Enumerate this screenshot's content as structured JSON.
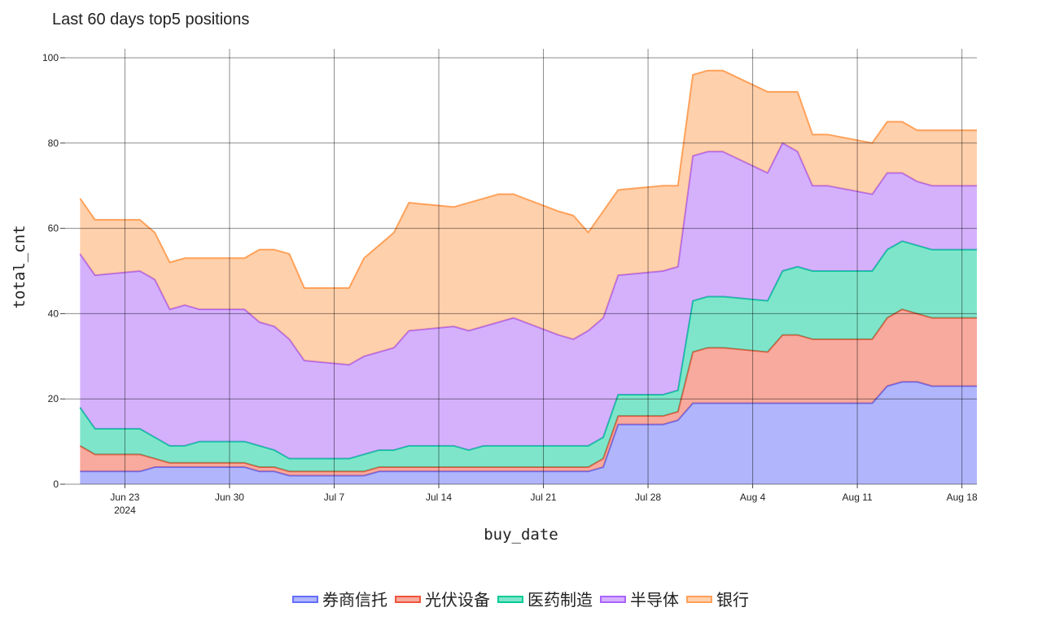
{
  "chart_data": {
    "type": "area",
    "stacked": true,
    "title": "Last 60 days top5 positions",
    "xlabel": "buy_date",
    "ylabel": "total_cnt",
    "x_start": "2024-06-19",
    "x_end": "2024-08-19",
    "ylim": [
      0,
      100
    ],
    "yticks": [
      0,
      20,
      40,
      60,
      80,
      100
    ],
    "xticks": [
      {
        "date": "2024-06-23",
        "label": "Jun 23",
        "sublabel": "2024"
      },
      {
        "date": "2024-06-30",
        "label": "Jun 30",
        "sublabel": ""
      },
      {
        "date": "2024-07-07",
        "label": "Jul 7",
        "sublabel": ""
      },
      {
        "date": "2024-07-14",
        "label": "Jul 14",
        "sublabel": ""
      },
      {
        "date": "2024-07-21",
        "label": "Jul 21",
        "sublabel": ""
      },
      {
        "date": "2024-07-28",
        "label": "Jul 28",
        "sublabel": ""
      },
      {
        "date": "2024-08-04",
        "label": "Aug 4",
        "sublabel": ""
      },
      {
        "date": "2024-08-11",
        "label": "Aug 11",
        "sublabel": ""
      },
      {
        "date": "2024-08-18",
        "label": "Aug 18",
        "sublabel": ""
      }
    ],
    "grid": true,
    "legend_position": "bottom",
    "x": [
      "2024-06-20",
      "2024-06-21",
      "2024-06-24",
      "2024-06-25",
      "2024-06-26",
      "2024-06-27",
      "2024-06-28",
      "2024-07-01",
      "2024-07-02",
      "2024-07-03",
      "2024-07-04",
      "2024-07-05",
      "2024-07-08",
      "2024-07-09",
      "2024-07-10",
      "2024-07-11",
      "2024-07-12",
      "2024-07-15",
      "2024-07-16",
      "2024-07-17",
      "2024-07-18",
      "2024-07-19",
      "2024-07-22",
      "2024-07-23",
      "2024-07-24",
      "2024-07-25",
      "2024-07-26",
      "2024-07-29",
      "2024-07-30",
      "2024-07-31",
      "2024-08-01",
      "2024-08-02",
      "2024-08-05",
      "2024-08-06",
      "2024-08-07",
      "2024-08-08",
      "2024-08-09",
      "2024-08-12",
      "2024-08-13",
      "2024-08-14",
      "2024-08-15",
      "2024-08-16",
      "2024-08-19"
    ],
    "series": [
      {
        "name": "券商信托",
        "color": "#636efa",
        "values": [
          3,
          3,
          3,
          4,
          4,
          4,
          4,
          4,
          3,
          3,
          2,
          2,
          2,
          2,
          3,
          3,
          3,
          3,
          3,
          3,
          3,
          3,
          3,
          3,
          3,
          4,
          14,
          14,
          15,
          19,
          19,
          19,
          19,
          19,
          19,
          19,
          19,
          19,
          23,
          24,
          24,
          23,
          23
        ]
      },
      {
        "name": "光伏设备",
        "color": "#ef553b",
        "values": [
          6,
          4,
          4,
          2,
          1,
          1,
          1,
          1,
          1,
          1,
          1,
          1,
          1,
          1,
          1,
          1,
          1,
          1,
          1,
          1,
          1,
          1,
          1,
          1,
          1,
          2,
          2,
          2,
          2,
          12,
          13,
          13,
          12,
          16,
          16,
          15,
          15,
          15,
          16,
          17,
          16,
          16,
          16
        ]
      },
      {
        "name": "医药制造",
        "color": "#00cc96",
        "values": [
          9,
          6,
          6,
          5,
          4,
          4,
          5,
          5,
          5,
          4,
          3,
          3,
          3,
          4,
          4,
          4,
          5,
          5,
          4,
          5,
          5,
          5,
          5,
          5,
          5,
          5,
          5,
          5,
          5,
          12,
          12,
          12,
          12,
          15,
          16,
          16,
          16,
          16,
          16,
          16,
          16,
          16,
          16
        ]
      },
      {
        "name": "半导体",
        "color": "#ab63fa",
        "values": [
          36,
          36,
          37,
          37,
          32,
          33,
          31,
          31,
          29,
          29,
          28,
          23,
          22,
          23,
          23,
          24,
          27,
          28,
          28,
          28,
          29,
          30,
          26,
          25,
          27,
          28,
          28,
          29,
          29,
          34,
          34,
          34,
          30,
          30,
          27,
          20,
          20,
          18,
          18,
          16,
          15,
          15,
          15
        ]
      },
      {
        "name": "银行",
        "color": "#ffa15a",
        "values": [
          13,
          13,
          12,
          11,
          11,
          11,
          12,
          12,
          17,
          18,
          20,
          17,
          18,
          23,
          25,
          27,
          30,
          28,
          30,
          30,
          30,
          29,
          29,
          29,
          23,
          25,
          20,
          20,
          19,
          19,
          19,
          19,
          19,
          12,
          14,
          12,
          12,
          12,
          12,
          12,
          12,
          13,
          13
        ]
      }
    ]
  }
}
